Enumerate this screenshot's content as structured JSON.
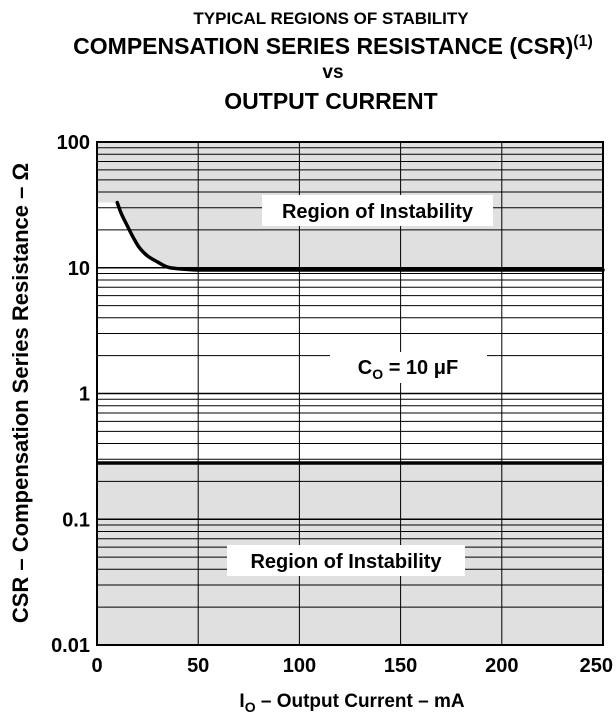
{
  "chart_data": {
    "type": "line",
    "title": [
      "TYPICAL REGIONS OF STABILITY",
      "COMPENSATION SERIES RESISTANCE (CSR)",
      "vs",
      "OUTPUT CURRENT"
    ],
    "title_note": "(1)",
    "xlabel": {
      "symbol": "I",
      "subscript": "O",
      "text": " – Output Current – mA"
    },
    "ylabel": "CSR – Compensation Series Resistance – Ω",
    "xlim": [
      0,
      250
    ],
    "ylim": [
      0.01,
      100
    ],
    "yscale": "log",
    "grid": true,
    "xticks": {
      "values": [
        0,
        50,
        100,
        150,
        200,
        250
      ],
      "labels": [
        "0",
        "50",
        "100",
        "150",
        "200",
        "250"
      ]
    },
    "yticks": {
      "values": [
        0.01,
        0.1,
        1,
        10,
        100
      ],
      "labels": [
        "0.01",
        "0.1",
        "1",
        "10",
        "100"
      ]
    },
    "series": [
      {
        "x": [
          10,
          12,
          15,
          18,
          21,
          25,
          30,
          35,
          41,
          50,
          75,
          100,
          150,
          200,
          250
        ],
        "y": [
          33,
          27,
          21.5,
          17.3,
          14.4,
          12.4,
          11.1,
          10.1,
          9.8,
          9.6,
          9.6,
          9.6,
          9.6,
          9.6,
          9.6
        ]
      },
      {
        "x": [
          0,
          250
        ],
        "y": [
          0.28,
          0.28
        ]
      }
    ],
    "annotations": {
      "upper_region": "Region of Instability",
      "capacitance": {
        "symbol": "C",
        "subscript": "O",
        "text": " = 10 μF"
      },
      "lower_region": "Region of Instability"
    },
    "colors": {
      "unstable_region": "#e0e0e0",
      "stable_region": "#ffffff",
      "lines": "#000000"
    }
  }
}
